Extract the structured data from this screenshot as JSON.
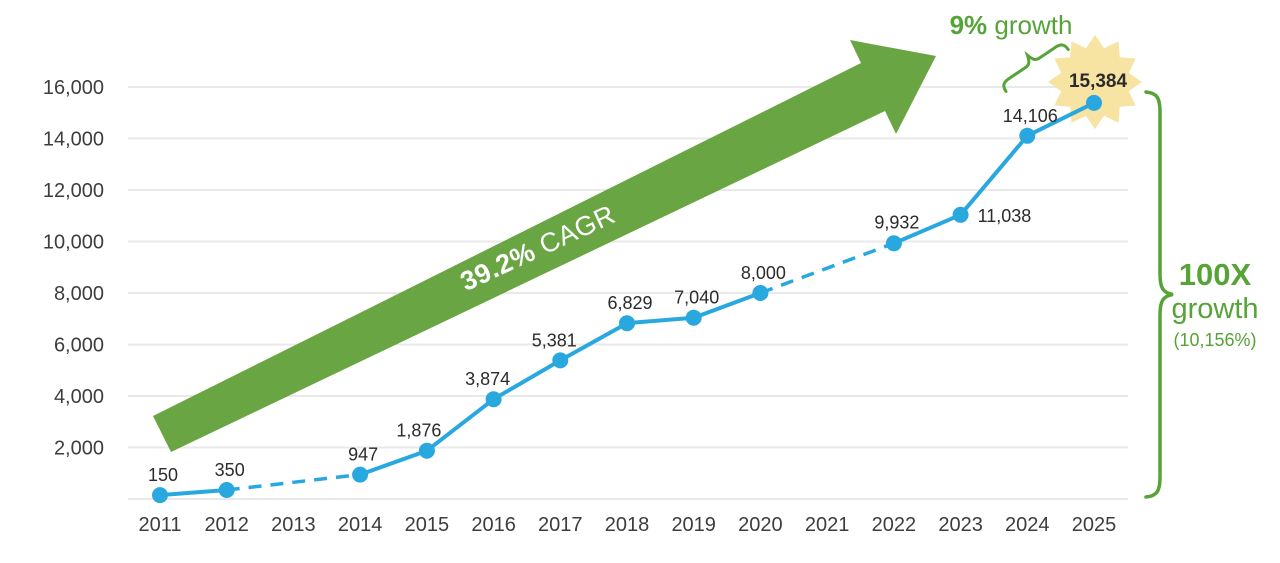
{
  "colors": {
    "background": "#FFFFFF",
    "line_blue": "#29A8E0",
    "arrow_green": "#6AA543",
    "accent_green": "#56A337",
    "grid_gray": "#E9E9E9",
    "axis_text": "#3D3D3D",
    "label_text": "#2B2B2B",
    "star_yellow": "#F7E3A2",
    "cagr_text": "#FFFFFF"
  },
  "chart_data": {
    "type": "line",
    "title": "",
    "xlabel": "",
    "ylabel": "",
    "x_ticks": [
      "2011",
      "2012",
      "2013",
      "2014",
      "2015",
      "2016",
      "2017",
      "2018",
      "2019",
      "2020",
      "2021",
      "2022",
      "2023",
      "2024",
      "2025"
    ],
    "y_axis": {
      "min": 0,
      "max": 16000,
      "tick_step": 2000,
      "tick_labels": [
        "2,000",
        "4,000",
        "6,000",
        "8,000",
        "10,000",
        "12,000",
        "14,000",
        "16,000"
      ]
    },
    "grid": "horizontal",
    "legend": "none",
    "series": [
      {
        "name": "annual value",
        "color": "#29A8E0",
        "points": [
          {
            "year": 2011,
            "value": 150,
            "label": "150"
          },
          {
            "year": 2012,
            "value": 350,
            "label": "350"
          },
          {
            "year": 2014,
            "value": 947,
            "label": "947"
          },
          {
            "year": 2015,
            "value": 1876,
            "label": "1,876"
          },
          {
            "year": 2016,
            "value": 3874,
            "label": "3,874"
          },
          {
            "year": 2017,
            "value": 5381,
            "label": "5,381"
          },
          {
            "year": 2018,
            "value": 6829,
            "label": "6,829"
          },
          {
            "year": 2019,
            "value": 7040,
            "label": "7,040"
          },
          {
            "year": 2020,
            "value": 8000,
            "label": "8,000"
          },
          {
            "year": 2022,
            "value": 9932,
            "label": "9,932"
          },
          {
            "year": 2023,
            "value": 11038,
            "label": "11,038"
          },
          {
            "year": 2024,
            "value": 14106,
            "label": "14,106"
          },
          {
            "year": 2025,
            "value": 15384,
            "label": "15,384",
            "highlighted": true
          }
        ],
        "missing_years": [
          2013,
          2021
        ],
        "dashed_between": [
          [
            2012,
            2014
          ],
          [
            2020,
            2022
          ]
        ]
      }
    ]
  },
  "annotations": {
    "cagr_arrow": {
      "text_bold": "39.2%",
      "text_rest": " CAGR"
    },
    "nine_growth": {
      "text_bold": "9%",
      "text_rest": " growth"
    },
    "hundred_x": {
      "line1": "100X",
      "line2": "growth",
      "line3": "(10,156%)"
    }
  }
}
